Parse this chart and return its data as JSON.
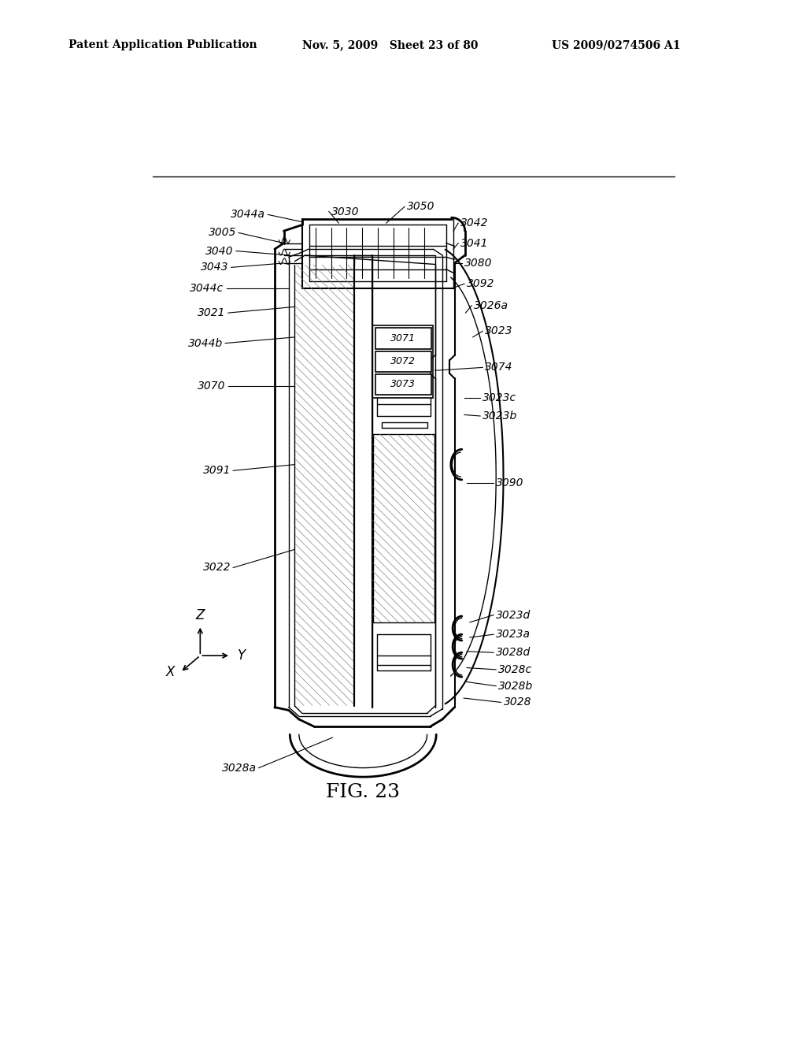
{
  "header_left": "Patent Application Publication",
  "header_mid": "Nov. 5, 2009   Sheet 23 of 80",
  "header_right": "US 2009/0274506 A1",
  "fig_caption": "FIG. 23",
  "bg": "#ffffff",
  "lc": "#000000"
}
